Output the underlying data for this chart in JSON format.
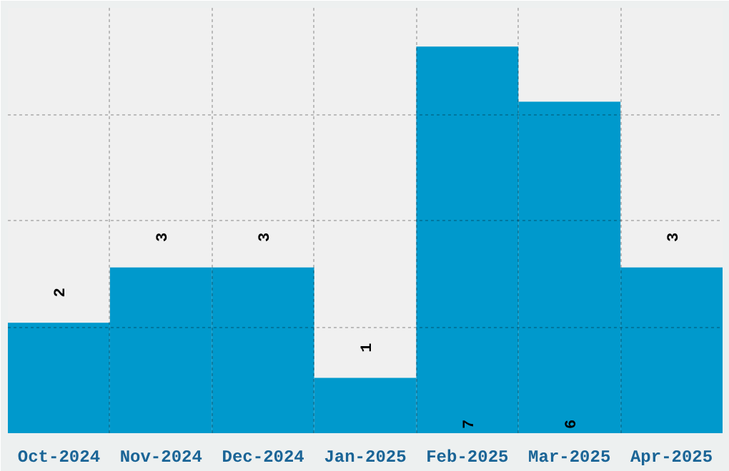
{
  "chart_data": {
    "type": "bar",
    "categories": [
      "Oct-2024",
      "Nov-2024",
      "Dec-2024",
      "Jan-2025",
      "Feb-2025",
      "Mar-2025",
      "Apr-2025"
    ],
    "values": [
      2,
      3,
      3,
      1,
      7,
      6,
      3
    ],
    "color": "#0099cc",
    "ylim": [
      0,
      7.7
    ],
    "yticks": [
      {
        "value": 1.925,
        "label": null
      },
      {
        "value": 3.85,
        "label": null
      },
      {
        "value": 5.775,
        "label": null
      }
    ],
    "tick_labels": "x",
    "grid": true,
    "data_labels": true
  }
}
